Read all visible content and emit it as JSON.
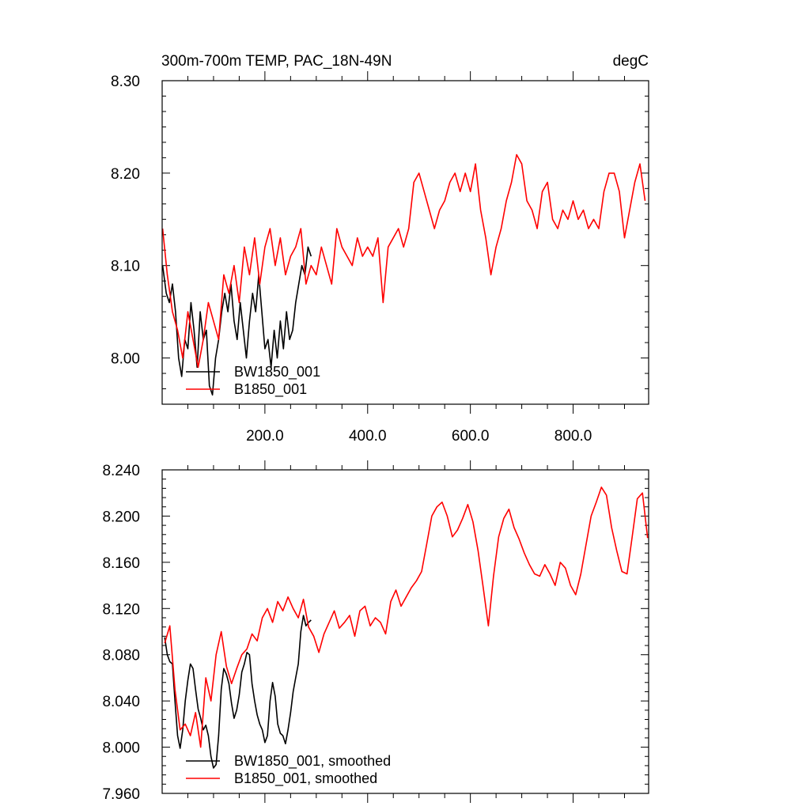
{
  "colors": {
    "black_series": "#000000",
    "red_series": "#ff0000",
    "axis": "#000000"
  },
  "chart_data": [
    {
      "type": "line",
      "title": "300m-700m TEMP, PAC_18N-49N",
      "units": "degC",
      "xlim": [
        0,
        947
      ],
      "ylim": [
        7.95,
        8.3
      ],
      "x_ticks": [
        200,
        400,
        600,
        800
      ],
      "x_tick_labels": [
        "200.0",
        "400.0",
        "600.0",
        "800.0"
      ],
      "y_ticks": [
        8.0,
        8.1,
        8.2,
        8.3
      ],
      "y_tick_labels": [
        "8.00",
        "8.10",
        "8.20",
        "8.30"
      ],
      "series": [
        {
          "name": "BW1850_001",
          "color": "#000000",
          "x": [
            1,
            8,
            14,
            20,
            26,
            32,
            38,
            44,
            50,
            56,
            62,
            68,
            74,
            80,
            86,
            92,
            98,
            104,
            110,
            116,
            122,
            128,
            134,
            140,
            146,
            152,
            158,
            164,
            170,
            176,
            182,
            188,
            194,
            200,
            206,
            212,
            218,
            224,
            230,
            236,
            242,
            248,
            254,
            260,
            266,
            272,
            278,
            284,
            290
          ],
          "values": [
            8.1,
            8.07,
            8.06,
            8.08,
            8.05,
            8.0,
            7.98,
            8.02,
            8.01,
            8.06,
            8.03,
            7.99,
            8.05,
            8.02,
            8.03,
            7.97,
            7.96,
            8.0,
            8.02,
            8.05,
            8.07,
            8.05,
            8.08,
            8.04,
            8.02,
            8.06,
            8.03,
            8.0,
            8.04,
            8.07,
            8.05,
            8.09,
            8.05,
            8.01,
            8.02,
            7.99,
            8.03,
            8.0,
            8.04,
            8.01,
            8.05,
            8.02,
            8.03,
            8.06,
            8.08,
            8.1,
            8.09,
            8.12,
            8.11
          ]
        },
        {
          "name": "B1850_001",
          "color": "#ff0000",
          "x": [
            1,
            10,
            20,
            30,
            40,
            50,
            60,
            70,
            80,
            90,
            100,
            110,
            120,
            130,
            140,
            150,
            160,
            170,
            180,
            190,
            200,
            210,
            220,
            230,
            240,
            250,
            260,
            270,
            280,
            290,
            300,
            310,
            320,
            330,
            340,
            350,
            360,
            370,
            380,
            390,
            400,
            410,
            420,
            430,
            440,
            450,
            460,
            470,
            480,
            490,
            500,
            510,
            520,
            530,
            540,
            550,
            560,
            570,
            580,
            590,
            600,
            610,
            620,
            630,
            640,
            650,
            660,
            670,
            680,
            690,
            700,
            710,
            720,
            730,
            740,
            750,
            760,
            770,
            780,
            790,
            800,
            810,
            820,
            830,
            840,
            850,
            860,
            870,
            880,
            890,
            900,
            910,
            920,
            930,
            940
          ],
          "values": [
            8.14,
            8.09,
            8.05,
            8.03,
            8.0,
            8.05,
            8.02,
            7.99,
            8.02,
            8.06,
            8.04,
            8.02,
            8.09,
            8.07,
            8.1,
            8.06,
            8.12,
            8.09,
            8.13,
            8.08,
            8.12,
            8.14,
            8.1,
            8.13,
            8.09,
            8.11,
            8.12,
            8.14,
            8.08,
            8.1,
            8.09,
            8.12,
            8.1,
            8.08,
            8.14,
            8.12,
            8.11,
            8.1,
            8.13,
            8.11,
            8.12,
            8.11,
            8.13,
            8.06,
            8.12,
            8.13,
            8.14,
            8.12,
            8.14,
            8.19,
            8.2,
            8.18,
            8.16,
            8.14,
            8.16,
            8.17,
            8.19,
            8.2,
            8.18,
            8.2,
            8.18,
            8.21,
            8.16,
            8.13,
            8.09,
            8.12,
            8.14,
            8.17,
            8.19,
            8.22,
            8.21,
            8.17,
            8.16,
            8.14,
            8.18,
            8.19,
            8.15,
            8.14,
            8.16,
            8.15,
            8.17,
            8.15,
            8.16,
            8.14,
            8.15,
            8.14,
            8.18,
            8.2,
            8.2,
            8.18,
            8.13,
            8.16,
            8.19,
            8.21,
            8.17
          ]
        }
      ],
      "legend": {
        "position": "bottom-left",
        "entries": [
          "BW1850_001",
          "B1850_001"
        ]
      }
    },
    {
      "type": "line",
      "title": "",
      "xlim": [
        0,
        947
      ],
      "ylim": [
        7.96,
        8.24
      ],
      "y_ticks": [
        7.96,
        8.0,
        8.04,
        8.08,
        8.12,
        8.16,
        8.2,
        8.24
      ],
      "y_tick_labels": [
        "7.960",
        "8.000",
        "8.040",
        "8.080",
        "8.120",
        "8.160",
        "8.200",
        "8.240"
      ],
      "series": [
        {
          "name": "BW1850_001, smoothed",
          "color": "#000000",
          "x": [
            5,
            10,
            15,
            20,
            25,
            30,
            35,
            40,
            45,
            50,
            55,
            60,
            65,
            70,
            75,
            80,
            85,
            90,
            95,
            100,
            105,
            110,
            115,
            120,
            125,
            130,
            135,
            140,
            145,
            150,
            155,
            160,
            165,
            170,
            175,
            180,
            185,
            190,
            195,
            200,
            205,
            210,
            215,
            220,
            225,
            230,
            235,
            240,
            245,
            250,
            255,
            260,
            265,
            270,
            275,
            280,
            285,
            290
          ],
          "values": [
            8.095,
            8.08,
            8.074,
            8.072,
            8.04,
            8.01,
            7.999,
            8.015,
            8.04,
            8.058,
            8.072,
            8.068,
            8.05,
            8.033,
            8.025,
            8.015,
            8.019,
            8.01,
            7.992,
            7.982,
            7.985,
            8.01,
            8.05,
            8.068,
            8.063,
            8.055,
            8.038,
            8.025,
            8.032,
            8.045,
            8.065,
            8.072,
            8.082,
            8.08,
            8.055,
            8.04,
            8.028,
            8.02,
            8.015,
            8.004,
            8.01,
            8.04,
            8.056,
            8.044,
            8.02,
            8.012,
            8.01,
            8.003,
            8.015,
            8.03,
            8.048,
            8.06,
            8.072,
            8.1,
            8.114,
            8.105,
            8.108,
            8.11
          ]
        },
        {
          "name": "B1850_001, smoothed",
          "color": "#ff0000",
          "x": [
            5,
            15,
            25,
            35,
            45,
            55,
            65,
            75,
            85,
            95,
            105,
            115,
            125,
            135,
            145,
            155,
            165,
            175,
            185,
            195,
            205,
            215,
            225,
            235,
            245,
            255,
            265,
            275,
            285,
            295,
            305,
            315,
            325,
            335,
            345,
            355,
            365,
            375,
            385,
            395,
            405,
            415,
            425,
            435,
            445,
            455,
            465,
            475,
            485,
            495,
            505,
            515,
            525,
            535,
            545,
            555,
            565,
            575,
            585,
            595,
            605,
            615,
            625,
            635,
            645,
            655,
            665,
            675,
            685,
            695,
            705,
            715,
            725,
            735,
            745,
            755,
            765,
            775,
            785,
            795,
            805,
            815,
            825,
            835,
            845,
            855,
            865,
            875,
            885,
            895,
            905,
            915,
            925,
            935,
            945
          ],
          "values": [
            8.09,
            8.105,
            8.05,
            8.015,
            8.02,
            8.01,
            8.03,
            8.0,
            8.06,
            8.04,
            8.08,
            8.1,
            8.07,
            8.055,
            8.068,
            8.08,
            8.085,
            8.098,
            8.092,
            8.112,
            8.12,
            8.108,
            8.126,
            8.118,
            8.13,
            8.12,
            8.112,
            8.128,
            8.104,
            8.096,
            8.082,
            8.098,
            8.108,
            8.118,
            8.103,
            8.108,
            8.114,
            8.096,
            8.118,
            8.122,
            8.105,
            8.112,
            8.108,
            8.098,
            8.126,
            8.136,
            8.122,
            8.13,
            8.138,
            8.144,
            8.152,
            8.176,
            8.2,
            8.208,
            8.212,
            8.2,
            8.182,
            8.188,
            8.198,
            8.21,
            8.195,
            8.17,
            8.138,
            8.105,
            8.148,
            8.182,
            8.198,
            8.206,
            8.19,
            8.18,
            8.168,
            8.158,
            8.15,
            8.148,
            8.158,
            8.15,
            8.14,
            8.16,
            8.155,
            8.14,
            8.132,
            8.15,
            8.175,
            8.2,
            8.212,
            8.225,
            8.218,
            8.19,
            8.17,
            8.152,
            8.15,
            8.182,
            8.215,
            8.22,
            8.181
          ]
        }
      ],
      "legend": {
        "position": "bottom-left",
        "entries": [
          "BW1850_001, smoothed",
          "B1850_001, smoothed"
        ]
      }
    }
  ]
}
